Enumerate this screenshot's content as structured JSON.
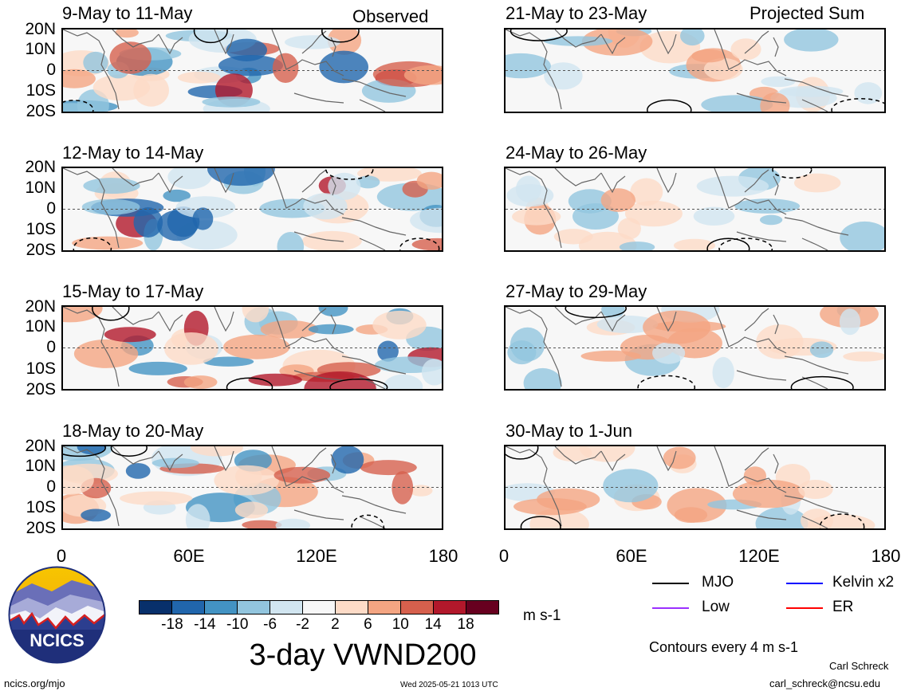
{
  "title": "3-day VWND200",
  "units": "m s-1",
  "contour_note": "Contours every 4 m s-1",
  "author": "Carl Schreck",
  "email": "carl_schreck@ncsu.edu",
  "site": "ncics.org/mjo",
  "timestamp": "Wed 2025-05-21 1013 UTC",
  "logo_text": "NCICS",
  "columns": {
    "left": "Observed",
    "right": "Projected Sum"
  },
  "lat_labels": [
    "20N",
    "10N",
    "0",
    "10S",
    "20S"
  ],
  "lon_labels": [
    "0",
    "60E",
    "120E",
    "180"
  ],
  "panels": [
    {
      "label": "9-May to 11-May"
    },
    {
      "label": "12-May to 14-May"
    },
    {
      "label": "15-May to 17-May"
    },
    {
      "label": "18-May to 20-May"
    },
    {
      "label": "21-May to 23-May"
    },
    {
      "label": "24-May to 26-May"
    },
    {
      "label": "27-May to 29-May"
    },
    {
      "label": "30-May to 1-Jun"
    }
  ],
  "colorbar": {
    "ticks": [
      "-18",
      "-14",
      "-10",
      "-6",
      "-2",
      "2",
      "6",
      "10",
      "14",
      "18"
    ],
    "colors": [
      "#08306b",
      "#2166ac",
      "#4393c3",
      "#92c5de",
      "#d1e5f0",
      "#f7f7f7",
      "#fddbc7",
      "#f4a582",
      "#d6604d",
      "#b2182b",
      "#67001f"
    ]
  },
  "legend": [
    {
      "label": "MJO",
      "color": "#000000"
    },
    {
      "label": "Kelvin x2",
      "color": "#0000ff"
    },
    {
      "label": "Low",
      "color": "#9b30ff"
    },
    {
      "label": "ER",
      "color": "#ff0000"
    }
  ]
}
